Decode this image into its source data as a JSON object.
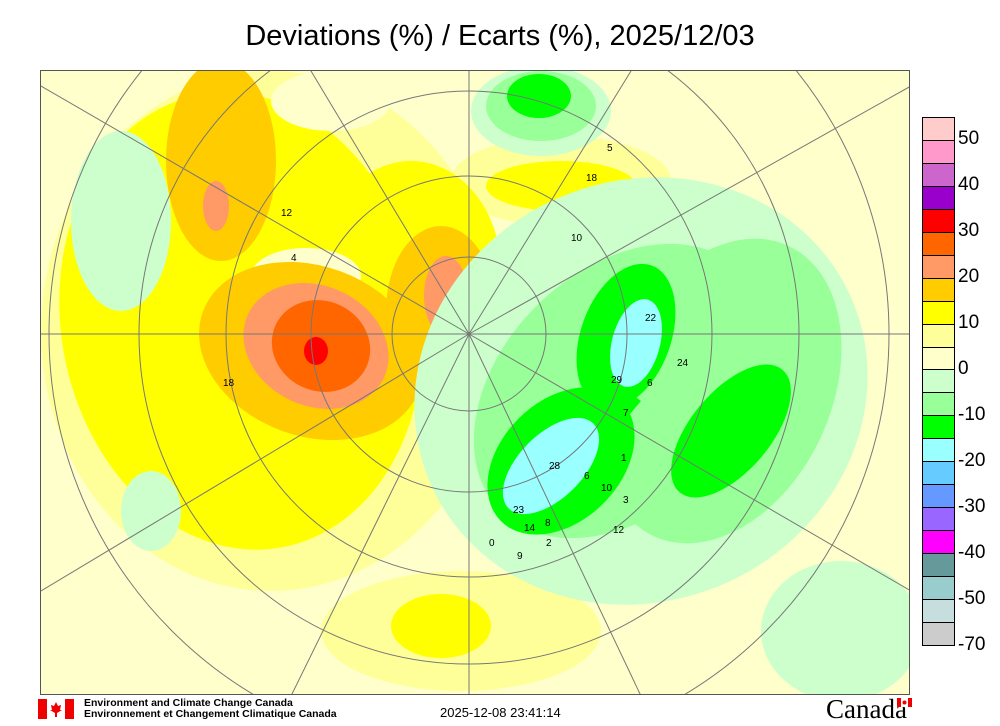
{
  "title": "Deviations (%) / Ecarts (%), 2025/12/03",
  "legend": {
    "colors": [
      "#ffcccc",
      "#ff99cc",
      "#cc66cc",
      "#9900cc",
      "#ff0000",
      "#ff6600",
      "#ff9966",
      "#ffcc00",
      "#ffff00",
      "#ffff99",
      "#ffffcc",
      "#ccffcc",
      "#99ff99",
      "#00ff00",
      "#99ffff",
      "#66ccff",
      "#6699ff",
      "#9966ff",
      "#ff00ff",
      "#669999",
      "#99cccc",
      "#c6dede",
      "#cccccc"
    ],
    "labels": [
      "50",
      "40",
      "30",
      "20",
      "10",
      "0",
      "-10",
      "-20",
      "-30",
      "-40",
      "-50",
      "-70"
    ]
  },
  "stations": [
    "22",
    "29",
    "6",
    "24",
    "7",
    "1",
    "28",
    "6",
    "10",
    "3",
    "12",
    "23",
    "14",
    "8",
    "2",
    "0",
    "9",
    "18",
    "5",
    "10",
    "12",
    "4",
    "18"
  ],
  "footer": {
    "org_en": "Environment and Climate Change Canada",
    "org_fr": "Environnement et Changement Climatique Canada",
    "timestamp": "2025-12-08 23:41:14",
    "wordmark": "Canada"
  }
}
